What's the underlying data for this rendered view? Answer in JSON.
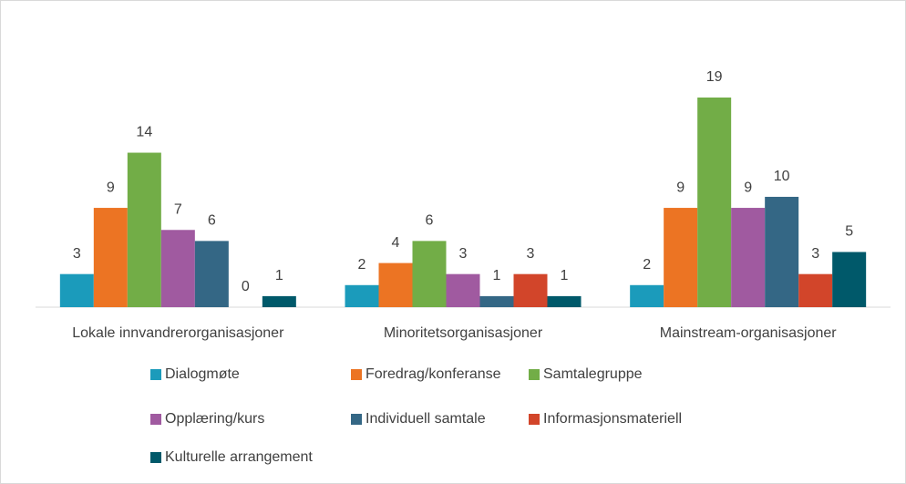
{
  "chart_data": {
    "type": "bar",
    "categories": [
      "Lokale innvandrerorganisasjoner",
      "Minoritetsorganisasjoner",
      "Mainstream-organisasjoner"
    ],
    "series": [
      {
        "name": "Dialogmøte",
        "color": "#1b9bbb",
        "values": [
          3,
          2,
          2
        ]
      },
      {
        "name": "Foredrag/konferanse",
        "color": "#ec7423",
        "values": [
          9,
          4,
          9
        ]
      },
      {
        "name": "Samtalegruppe",
        "color": "#72ad47",
        "values": [
          14,
          6,
          19
        ]
      },
      {
        "name": "Opplæring/kurs",
        "color": "#a05aa0",
        "values": [
          7,
          3,
          9
        ]
      },
      {
        "name": "Individuell samtale",
        "color": "#346785",
        "values": [
          6,
          1,
          10
        ]
      },
      {
        "name": "Informasjonsmateriell",
        "color": "#d2452a",
        "values": [
          0,
          3,
          3
        ]
      },
      {
        "name": "Kulturelle arrangement",
        "color": "#00596a",
        "values": [
          1,
          1,
          5
        ]
      }
    ],
    "legend": "bottom"
  }
}
